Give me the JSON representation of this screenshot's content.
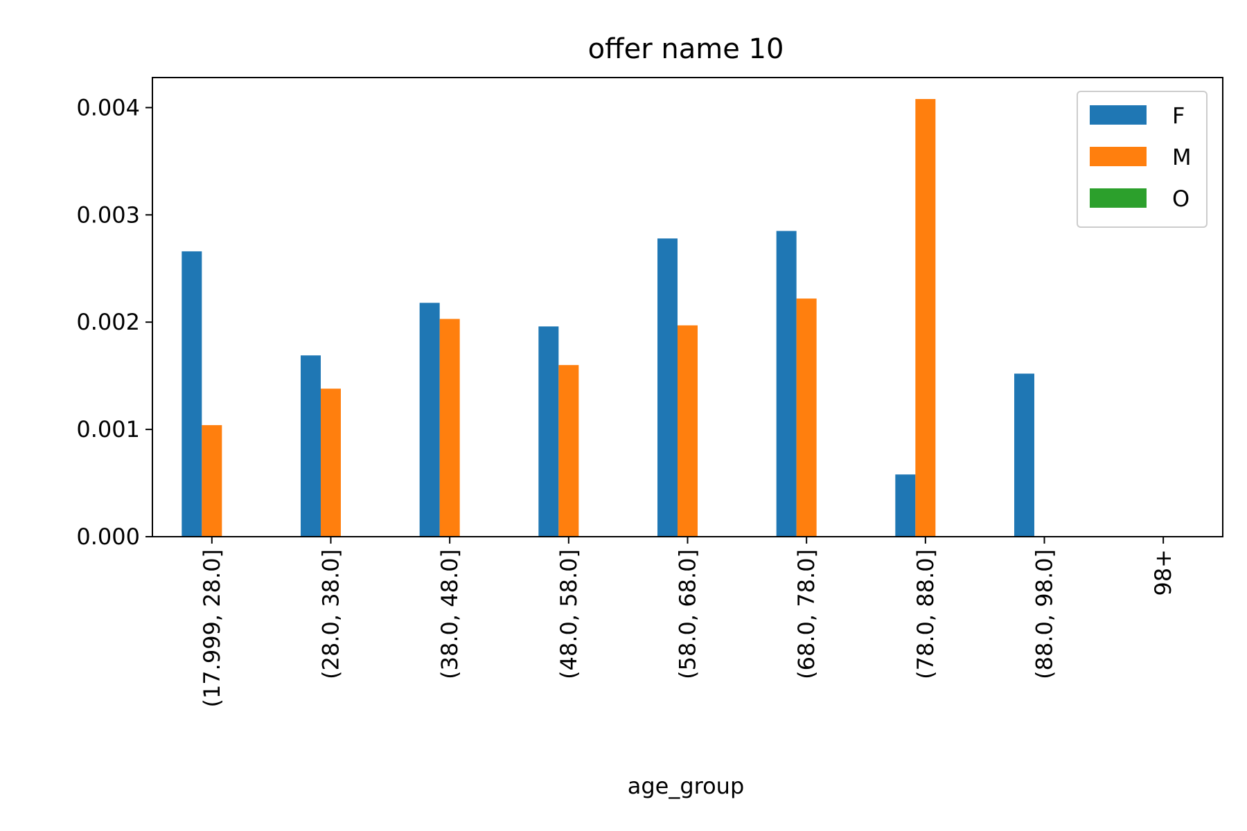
{
  "chart_data": {
    "type": "bar",
    "title": "offer name 10",
    "xlabel": "age_group",
    "ylabel": "",
    "categories": [
      "(17.999, 28.0]",
      "(28.0, 38.0]",
      "(38.0, 48.0]",
      "(48.0, 58.0]",
      "(58.0, 68.0]",
      "(68.0, 78.0]",
      "(78.0, 88.0]",
      "(88.0, 98.0]",
      "98+"
    ],
    "series": [
      {
        "name": "F",
        "color": "#1f77b4",
        "values": [
          0.00266,
          0.00169,
          0.00218,
          0.00196,
          0.00278,
          0.00285,
          0.00058,
          0.00152,
          0
        ]
      },
      {
        "name": "M",
        "color": "#ff7f0e",
        "values": [
          0.00104,
          0.00138,
          0.00203,
          0.0016,
          0.00197,
          0.00222,
          0.00408,
          0,
          0
        ]
      },
      {
        "name": "O",
        "color": "#2ca02c",
        "values": [
          0,
          0,
          0,
          0,
          0,
          0,
          0,
          0,
          0
        ]
      }
    ],
    "ylim": [
      0,
      0.00428
    ],
    "yticks": [
      "0.000",
      "0.001",
      "0.002",
      "0.003",
      "0.004"
    ],
    "ytick_values": [
      0,
      0.001,
      0.002,
      0.003,
      0.004
    ],
    "grid": false,
    "legend_position": "top-right"
  }
}
